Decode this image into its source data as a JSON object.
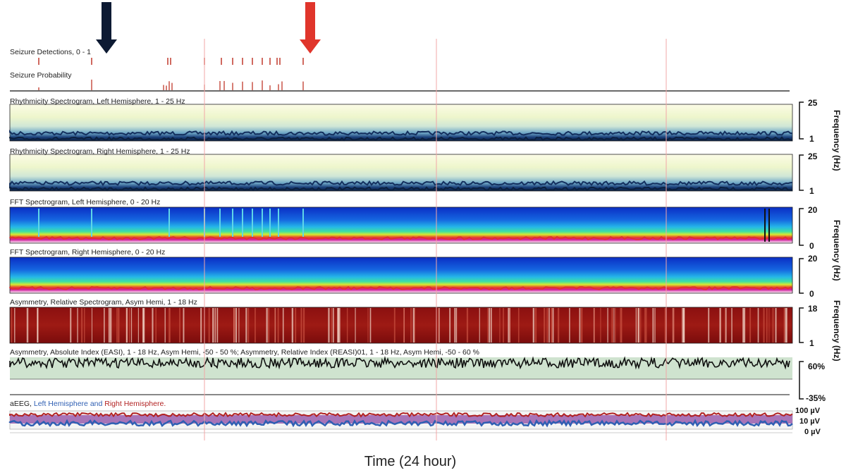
{
  "chart_data": {
    "type": "heatmap",
    "title": "",
    "xlabel": "Time (24 hour)",
    "panels": [
      {
        "label": "Seizure Detections, 0 - 1",
        "type": "event-markers",
        "ylim": [
          0,
          1
        ]
      },
      {
        "label": "Seizure Probability",
        "type": "event-markers"
      },
      {
        "label": "Rhythmicity Spectrogram, Left Hemisphere, 1 - 25 Hz",
        "type": "heatmap",
        "ylim": [
          1,
          25
        ],
        "yticks": [
          "25",
          "1"
        ],
        "ylabel": "Frequency (Hz)"
      },
      {
        "label": "Rhythmicity Spectrogram, Right Hemisphere, 1 - 25 Hz",
        "type": "heatmap",
        "ylim": [
          1,
          25
        ],
        "yticks": [
          "25",
          "1"
        ]
      },
      {
        "label": "FFT Spectrogram, Left Hemisphere, 0 - 20 Hz",
        "type": "heatmap",
        "ylim": [
          0,
          20
        ],
        "yticks": [
          "20",
          "0"
        ],
        "ylabel": "Frequency (Hz)"
      },
      {
        "label": "FFT Spectrogram, Right Hemisphere, 0 - 20 Hz",
        "type": "heatmap",
        "ylim": [
          0,
          20
        ],
        "yticks": [
          "20",
          "0"
        ]
      },
      {
        "label": "Asymmetry, Relative Spectrogram, Asym Hemi, 1 - 18 Hz",
        "type": "heatmap",
        "ylim": [
          1,
          18
        ],
        "yticks": [
          "18",
          "1"
        ],
        "ylabel": "Frequency (Hz)"
      },
      {
        "label": "Asymmetry, Absolute Index (EASI), 1 - 18 Hz, Asym Hemi, -50 - 50 %; Asymmetry, Relative Index (REASI)01, 1 - 18 Hz, Asym Hemi, -50 - 60 %",
        "type": "line",
        "yticks": [
          "60%",
          "-35%"
        ]
      },
      {
        "label_prefix": "aEEG, ",
        "label_left": "Left Hemisphere",
        "label_mid": " and ",
        "label_right": "Right Hemisphere",
        "label_suffix": ".",
        "type": "area",
        "yticks": [
          "100 µV",
          "10 µV",
          "0 µV"
        ]
      }
    ],
    "annotations": [
      {
        "type": "arrow",
        "color": "#0d1a33",
        "position": "above first seizure detection"
      },
      {
        "type": "arrow",
        "color": "#e0352b",
        "position": "above last seizure detection"
      }
    ],
    "colors": {
      "arrow_black": "#0d1a33",
      "arrow_red": "#e0352b",
      "event": "#c0392b",
      "gridline": "#f2a7a7",
      "left_hemi": "#2f5fb3",
      "right_hemi": "#b22222"
    }
  }
}
